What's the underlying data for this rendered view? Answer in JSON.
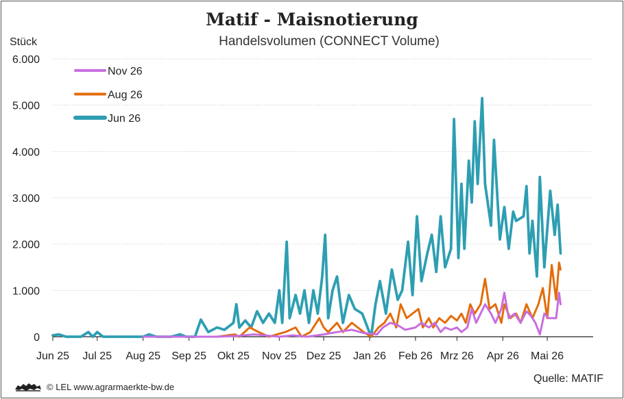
{
  "header": {
    "title": "Matif - Maisnotierung",
    "subtitle": "Handelsvolumen (CONNECT Volume)",
    "unit": "Stück"
  },
  "footer": {
    "source": "Quelle: MATIF",
    "credit": "© LEL www.agrarmaerkte-bw.de",
    "logo_icon": "lion-coat-of-arms-icon"
  },
  "colors": {
    "nov26": "#c86ee0",
    "aug26": "#e36c0a",
    "jun26": "#2e9eb2",
    "grid": "#d9d9d9",
    "axis": "#222222"
  },
  "chart_data": {
    "type": "line",
    "title": "Matif - Maisnotierung",
    "subtitle": "Handelsvolumen (CONNECT Volume)",
    "ylabel": "Stück",
    "xlabel": "",
    "ylim": [
      0,
      6000
    ],
    "yticks": [
      0,
      1000,
      2000,
      3000,
      4000,
      5000,
      6000
    ],
    "ytick_labels": [
      "0",
      "1.000",
      "2.000",
      "3.000",
      "4.000",
      "5.000",
      "6.000"
    ],
    "xlim": [
      "2025-06-01",
      "2026-06-01"
    ],
    "xticks": [
      "2025-06-01",
      "2025-07-01",
      "2025-08-01",
      "2025-09-01",
      "2025-10-01",
      "2025-11-01",
      "2025-12-01",
      "2026-01-01",
      "2026-02-01",
      "2026-03-01",
      "2026-04-01",
      "2026-05-01"
    ],
    "xtick_labels": [
      "Jun 25",
      "Jul 25",
      "Aug 25",
      "Sep 25",
      "Okt 25",
      "Nov 25",
      "Dez 25",
      "Jan 26",
      "Feb 26",
      "Mrz 26",
      "Apr 26",
      "Mai 26"
    ],
    "grid": "horizontal",
    "legend_position": "top-left",
    "series": [
      {
        "name": "Nov 26",
        "color": "#c86ee0",
        "points": [
          [
            "2025-08-01",
            0
          ],
          [
            "2025-09-01",
            0
          ],
          [
            "2025-09-20",
            0
          ],
          [
            "2025-10-05",
            20
          ],
          [
            "2025-10-15",
            50
          ],
          [
            "2025-10-25",
            20
          ],
          [
            "2025-11-01",
            0
          ],
          [
            "2025-11-10",
            30
          ],
          [
            "2025-11-20",
            0
          ],
          [
            "2025-12-01",
            50
          ],
          [
            "2025-12-10",
            100
          ],
          [
            "2025-12-20",
            150
          ],
          [
            "2025-12-28",
            80
          ],
          [
            "2026-01-06",
            50
          ],
          [
            "2026-01-10",
            200
          ],
          [
            "2026-01-15",
            300
          ],
          [
            "2026-01-20",
            250
          ],
          [
            "2026-01-25",
            150
          ],
          [
            "2026-02-01",
            200
          ],
          [
            "2026-02-05",
            300
          ],
          [
            "2026-02-10",
            200
          ],
          [
            "2026-02-14",
            300
          ],
          [
            "2026-02-18",
            100
          ],
          [
            "2026-02-21",
            200
          ],
          [
            "2026-02-25",
            150
          ],
          [
            "2026-03-01",
            200
          ],
          [
            "2026-03-04",
            100
          ],
          [
            "2026-03-08",
            200
          ],
          [
            "2026-03-11",
            600
          ],
          [
            "2026-03-14",
            300
          ],
          [
            "2026-03-17",
            500
          ],
          [
            "2026-03-20",
            700
          ],
          [
            "2026-03-24",
            500
          ],
          [
            "2026-03-27",
            300
          ],
          [
            "2026-03-31",
            600
          ],
          [
            "2026-04-02",
            950
          ],
          [
            "2026-04-05",
            400
          ],
          [
            "2026-04-09",
            500
          ],
          [
            "2026-04-13",
            300
          ],
          [
            "2026-04-17",
            550
          ],
          [
            "2026-04-20",
            450
          ],
          [
            "2026-04-23",
            300
          ],
          [
            "2026-04-26",
            50
          ],
          [
            "2026-04-29",
            500
          ],
          [
            "2026-05-02",
            400
          ],
          [
            "2026-05-07",
            400
          ],
          [
            "2026-05-09",
            950
          ],
          [
            "2026-05-10",
            700
          ]
        ]
      },
      {
        "name": "Aug 26",
        "color": "#e36c0a",
        "points": [
          [
            "2025-09-20",
            0
          ],
          [
            "2025-10-02",
            50
          ],
          [
            "2025-10-05",
            0
          ],
          [
            "2025-10-12",
            200
          ],
          [
            "2025-10-18",
            100
          ],
          [
            "2025-10-25",
            0
          ],
          [
            "2025-11-05",
            100
          ],
          [
            "2025-11-12",
            200
          ],
          [
            "2025-11-16",
            0
          ],
          [
            "2025-11-22",
            100
          ],
          [
            "2025-11-28",
            400
          ],
          [
            "2025-12-01",
            200
          ],
          [
            "2025-12-04",
            100
          ],
          [
            "2025-12-10",
            300
          ],
          [
            "2025-12-14",
            100
          ],
          [
            "2025-12-20",
            300
          ],
          [
            "2025-12-24",
            200
          ],
          [
            "2025-12-28",
            100
          ],
          [
            "2026-01-02",
            0
          ],
          [
            "2026-01-07",
            200
          ],
          [
            "2026-01-11",
            300
          ],
          [
            "2026-01-15",
            500
          ],
          [
            "2026-01-19",
            200
          ],
          [
            "2026-01-22",
            700
          ],
          [
            "2026-01-26",
            400
          ],
          [
            "2026-01-30",
            500
          ],
          [
            "2026-02-03",
            600
          ],
          [
            "2026-02-06",
            200
          ],
          [
            "2026-02-10",
            400
          ],
          [
            "2026-02-13",
            200
          ],
          [
            "2026-02-17",
            400
          ],
          [
            "2026-02-21",
            300
          ],
          [
            "2026-02-25",
            450
          ],
          [
            "2026-03-01",
            350
          ],
          [
            "2026-03-04",
            500
          ],
          [
            "2026-03-07",
            300
          ],
          [
            "2026-03-10",
            700
          ],
          [
            "2026-03-13",
            500
          ],
          [
            "2026-03-17",
            700
          ],
          [
            "2026-03-20",
            1250
          ],
          [
            "2026-03-23",
            600
          ],
          [
            "2026-03-27",
            700
          ],
          [
            "2026-03-31",
            300
          ],
          [
            "2026-04-02",
            700
          ],
          [
            "2026-04-06",
            400
          ],
          [
            "2026-04-10",
            500
          ],
          [
            "2026-04-13",
            300
          ],
          [
            "2026-04-17",
            700
          ],
          [
            "2026-04-21",
            400
          ],
          [
            "2026-04-25",
            700
          ],
          [
            "2026-04-28",
            1050
          ],
          [
            "2026-05-01",
            400
          ],
          [
            "2026-05-04",
            1550
          ],
          [
            "2026-05-07",
            800
          ],
          [
            "2026-05-09",
            1600
          ],
          [
            "2026-05-10",
            1450
          ]
        ]
      },
      {
        "name": "Jun 26",
        "color": "#2e9eb2",
        "points": [
          [
            "2025-06-01",
            30
          ],
          [
            "2025-06-05",
            50
          ],
          [
            "2025-06-10",
            0
          ],
          [
            "2025-06-20",
            0
          ],
          [
            "2025-06-25",
            100
          ],
          [
            "2025-06-28",
            0
          ],
          [
            "2025-07-01",
            100
          ],
          [
            "2025-07-05",
            0
          ],
          [
            "2025-07-20",
            0
          ],
          [
            "2025-08-01",
            0
          ],
          [
            "2025-08-05",
            50
          ],
          [
            "2025-08-10",
            0
          ],
          [
            "2025-08-20",
            0
          ],
          [
            "2025-08-26",
            50
          ],
          [
            "2025-08-30",
            0
          ],
          [
            "2025-09-05",
            0
          ],
          [
            "2025-09-09",
            370
          ],
          [
            "2025-09-14",
            100
          ],
          [
            "2025-09-20",
            200
          ],
          [
            "2025-09-25",
            150
          ],
          [
            "2025-10-01",
            300
          ],
          [
            "2025-10-03",
            700
          ],
          [
            "2025-10-05",
            200
          ],
          [
            "2025-10-09",
            350
          ],
          [
            "2025-10-13",
            200
          ],
          [
            "2025-10-17",
            550
          ],
          [
            "2025-10-21",
            300
          ],
          [
            "2025-10-25",
            500
          ],
          [
            "2025-10-29",
            300
          ],
          [
            "2025-11-01",
            1000
          ],
          [
            "2025-11-03",
            300
          ],
          [
            "2025-11-06",
            2050
          ],
          [
            "2025-11-08",
            400
          ],
          [
            "2025-11-12",
            900
          ],
          [
            "2025-11-15",
            500
          ],
          [
            "2025-11-18",
            1000
          ],
          [
            "2025-11-21",
            300
          ],
          [
            "2025-11-24",
            1000
          ],
          [
            "2025-11-27",
            500
          ],
          [
            "2025-11-30",
            1300
          ],
          [
            "2025-12-02",
            2200
          ],
          [
            "2025-12-04",
            400
          ],
          [
            "2025-12-07",
            1000
          ],
          [
            "2025-12-10",
            1300
          ],
          [
            "2025-12-14",
            300
          ],
          [
            "2025-12-18",
            900
          ],
          [
            "2025-12-22",
            600
          ],
          [
            "2025-12-27",
            500
          ],
          [
            "2026-01-02",
            0
          ],
          [
            "2026-01-05",
            700
          ],
          [
            "2026-01-08",
            1200
          ],
          [
            "2026-01-12",
            500
          ],
          [
            "2026-01-16",
            1450
          ],
          [
            "2026-01-20",
            800
          ],
          [
            "2026-01-23",
            1000
          ],
          [
            "2026-01-27",
            2050
          ],
          [
            "2026-01-30",
            900
          ],
          [
            "2026-02-02",
            2600
          ],
          [
            "2026-02-05",
            1200
          ],
          [
            "2026-02-09",
            1800
          ],
          [
            "2026-02-12",
            2200
          ],
          [
            "2026-02-15",
            1400
          ],
          [
            "2026-02-18",
            2600
          ],
          [
            "2026-02-21",
            1500
          ],
          [
            "2026-02-25",
            1900
          ],
          [
            "2026-02-27",
            4700
          ],
          [
            "2026-03-02",
            1700
          ],
          [
            "2026-03-04",
            3300
          ],
          [
            "2026-03-06",
            1900
          ],
          [
            "2026-03-09",
            3800
          ],
          [
            "2026-03-11",
            2900
          ],
          [
            "2026-03-13",
            4650
          ],
          [
            "2026-03-15",
            3300
          ],
          [
            "2026-03-18",
            5150
          ],
          [
            "2026-03-20",
            3300
          ],
          [
            "2026-03-24",
            2400
          ],
          [
            "2026-03-26",
            4250
          ],
          [
            "2026-03-30",
            2100
          ],
          [
            "2026-04-02",
            2800
          ],
          [
            "2026-04-05",
            1900
          ],
          [
            "2026-04-08",
            2700
          ],
          [
            "2026-04-10",
            2500
          ],
          [
            "2026-04-15",
            2600
          ],
          [
            "2026-04-17",
            3250
          ],
          [
            "2026-04-19",
            1800
          ],
          [
            "2026-04-21",
            2500
          ],
          [
            "2026-04-24",
            1300
          ],
          [
            "2026-04-26",
            3450
          ],
          [
            "2026-04-29",
            1500
          ],
          [
            "2026-05-03",
            3150
          ],
          [
            "2026-05-06",
            2200
          ],
          [
            "2026-05-08",
            2850
          ],
          [
            "2026-05-10",
            1800
          ]
        ]
      }
    ]
  }
}
